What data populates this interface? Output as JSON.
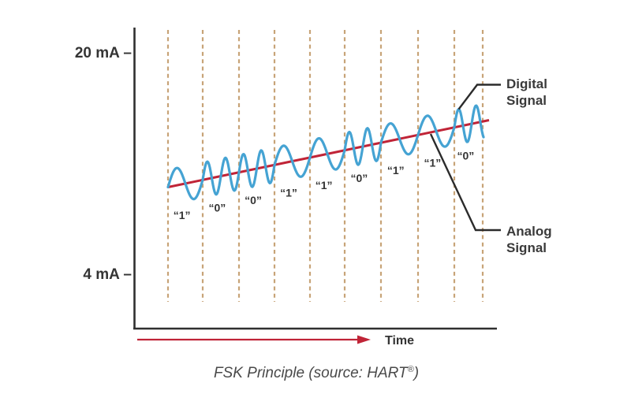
{
  "figure": {
    "caption_pre": "FSK Principle (source: HART",
    "caption_reg": "®",
    "caption_post": ")",
    "y_axis_ticks": [
      "20 mA –",
      "4 mA –"
    ],
    "x_axis_label": "Time",
    "digital_callout_line1": "Digital",
    "digital_callout_line2": "Signal",
    "analog_callout_line1": "Analog",
    "analog_callout_line2": "Signal",
    "bit_labels": [
      "“1”",
      "“0”",
      "“0”",
      "“1”",
      "“1”",
      "“0”",
      "“1”",
      "“1”",
      "“0”"
    ]
  },
  "chart_data": {
    "type": "line",
    "title": "FSK Principle (source: HART®)",
    "y_tick_labels": [
      "20 mA",
      "4 mA"
    ],
    "x_axis_label": "Time",
    "bit_sequence": [
      "1",
      "0",
      "0",
      "1",
      "1",
      "0",
      "1",
      "1",
      "0"
    ],
    "cycles_per_bit": {
      "1": 1,
      "0": 2
    },
    "series": [
      {
        "name": "Digital Signal",
        "shape": "FSK sine wave superimposed on the analog current"
      },
      {
        "name": "Analog Signal",
        "shape": "slowly rising straight line between 4 mA and 20 mA"
      }
    ],
    "legend_position": "right"
  },
  "colors": {
    "digital_signal": "#45A3D3",
    "analog_signal": "#C02437",
    "bit_dividers": "#C7A377",
    "axis": "#2F2F2F",
    "text": "#343434",
    "caption": "#4A4A4A"
  }
}
